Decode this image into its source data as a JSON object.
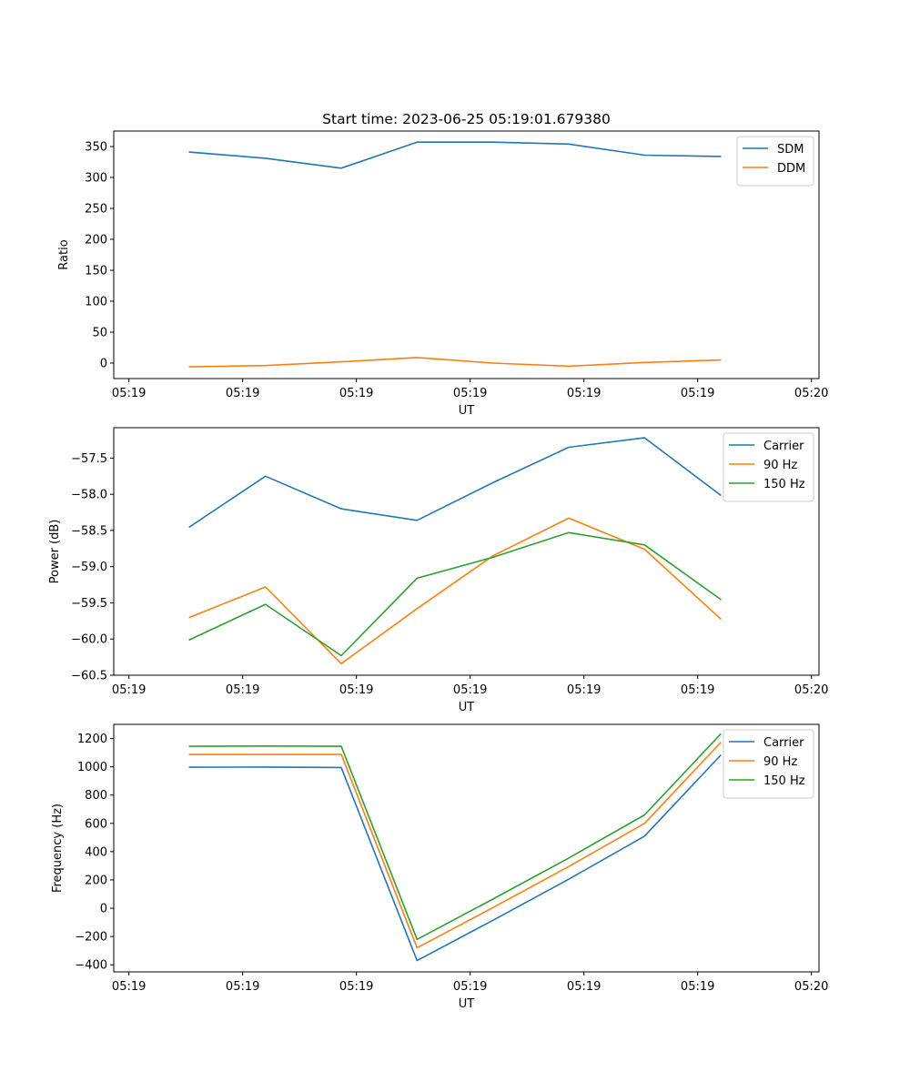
{
  "figure": {
    "background": "#ffffff",
    "series_colors": [
      "#1f77b4",
      "#ff7f0e",
      "#2ca02c"
    ]
  },
  "chart_data": [
    {
      "type": "line",
      "title": "Start time: 2023-06-25 05:19:01.679380",
      "xlabel": "UT",
      "ylabel": "Ratio",
      "x_tick_labels": [
        "05:19",
        "05:19",
        "05:19",
        "05:19",
        "05:19",
        "05:19",
        "05:20"
      ],
      "y_ticks": [
        0,
        50,
        100,
        150,
        200,
        250,
        300,
        350
      ],
      "y_tick_labels": [
        "0",
        "50",
        "100",
        "150",
        "200",
        "250",
        "300",
        "350"
      ],
      "ylim": [
        -25,
        375
      ],
      "x": [
        1,
        2,
        3,
        4,
        5,
        6,
        7,
        8
      ],
      "xlim": [
        0,
        9.3
      ],
      "legend_position": "upper right",
      "series": [
        {
          "name": "SDM",
          "color": "#1f77b4",
          "values": [
            341,
            331,
            315,
            357,
            357,
            354,
            336,
            334
          ]
        },
        {
          "name": "DDM",
          "color": "#ff7f0e",
          "values": [
            -6,
            -4,
            2,
            9,
            0,
            -5,
            1,
            5
          ]
        }
      ]
    },
    {
      "type": "line",
      "title": "",
      "xlabel": "UT",
      "ylabel": "Power (dB)",
      "x_tick_labels": [
        "05:19",
        "05:19",
        "05:19",
        "05:19",
        "05:19",
        "05:19",
        "05:20"
      ],
      "y_ticks": [
        -60.5,
        -60.0,
        -59.5,
        -59.0,
        -58.5,
        -58.0,
        -57.5
      ],
      "y_tick_labels": [
        "−60.5",
        "−60.0",
        "−59.5",
        "−59.0",
        "−58.5",
        "−58.0",
        "−57.5"
      ],
      "ylim": [
        -60.5,
        -57.08
      ],
      "x": [
        1,
        2,
        3,
        4,
        5,
        6,
        7,
        8
      ],
      "xlim": [
        0,
        9.3
      ],
      "legend_position": "upper right",
      "series": [
        {
          "name": "Carrier",
          "color": "#1f77b4",
          "values": [
            -58.45,
            -57.75,
            -58.2,
            -58.36,
            -57.84,
            -57.35,
            -57.22,
            -58.01
          ]
        },
        {
          "name": "90 Hz",
          "color": "#ff7f0e",
          "values": [
            -59.7,
            -59.28,
            -60.34,
            -59.58,
            -58.85,
            -58.33,
            -58.76,
            -59.72
          ]
        },
        {
          "name": "150 Hz",
          "color": "#2ca02c",
          "values": [
            -60.01,
            -59.52,
            -60.23,
            -59.16,
            -58.87,
            -58.53,
            -58.7,
            -59.45
          ]
        }
      ]
    },
    {
      "type": "line",
      "title": "",
      "xlabel": "UT",
      "ylabel": "Frequency (Hz)",
      "x_tick_labels": [
        "05:19",
        "05:19",
        "05:19",
        "05:19",
        "05:19",
        "05:19",
        "05:20"
      ],
      "y_ticks": [
        -400,
        -200,
        0,
        200,
        400,
        600,
        800,
        1000,
        1200
      ],
      "y_tick_labels": [
        "−400",
        "−200",
        "0",
        "200",
        "400",
        "600",
        "800",
        "1000",
        "1200"
      ],
      "ylim": [
        -450,
        1300
      ],
      "x": [
        1,
        2,
        3,
        4,
        5,
        6,
        7,
        8
      ],
      "xlim": [
        0,
        9.3
      ],
      "legend_position": "upper right",
      "series": [
        {
          "name": "Carrier",
          "color": "#1f77b4",
          "values": [
            997,
            998,
            995,
            -370,
            -85,
            205,
            510,
            1080
          ]
        },
        {
          "name": "90 Hz",
          "color": "#ff7f0e",
          "values": [
            1087,
            1087,
            1087,
            -280,
            5,
            295,
            600,
            1170
          ]
        },
        {
          "name": "150 Hz",
          "color": "#2ca02c",
          "values": [
            1145,
            1147,
            1145,
            -220,
            65,
            355,
            660,
            1230
          ]
        }
      ]
    }
  ]
}
